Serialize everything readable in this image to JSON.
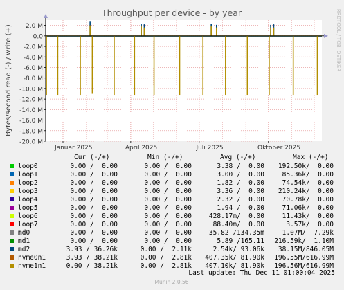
{
  "title": "Throughput per device - by year",
  "ylabel": "Bytes/second read (-) / write (+)",
  "side_label": "RRDTOOL / TOBI OETIKER",
  "footer": "Munin 2.0.56",
  "last_update": "Last update: Thu Dec 11 01:00:04 2025",
  "colors": {
    "bg": "#f0f0f0",
    "plot": "#ffffff",
    "grid": "#e8a0a0",
    "gridminor": "#f0c8c8",
    "axis": "#000000",
    "title": "#555555"
  },
  "legend_headers": {
    "cur": "Cur (-/+)",
    "min": "Min (-/+)",
    "avg": "Avg (-/+)",
    "max": "Max (-/+)"
  },
  "legend": [
    {
      "name": "loop0",
      "color": "#00cc00",
      "cur": "0.00 /  0.00",
      "min": "0.00 /  0.00",
      "avg": "3.38 /  0.00",
      "max": "192.50k/  0.00"
    },
    {
      "name": "loop1",
      "color": "#0066b3",
      "cur": "0.00 /  0.00",
      "min": "0.00 /  0.00",
      "avg": "3.00 /  0.00",
      "max": "85.36k/  0.00"
    },
    {
      "name": "loop2",
      "color": "#ff8000",
      "cur": "0.00 /  0.00",
      "min": "0.00 /  0.00",
      "avg": "1.82 /  0.00",
      "max": "74.54k/  0.00"
    },
    {
      "name": "loop3",
      "color": "#ffcc00",
      "cur": "0.00 /  0.00",
      "min": "0.00 /  0.00",
      "avg": "3.36 /  0.00",
      "max": "210.24k/  0.00"
    },
    {
      "name": "loop4",
      "color": "#330099",
      "cur": "0.00 /  0.00",
      "min": "0.00 /  0.00",
      "avg": "2.32 /  0.00",
      "max": "70.78k/  0.00"
    },
    {
      "name": "loop5",
      "color": "#990099",
      "cur": "0.00 /  0.00",
      "min": "0.00 /  0.00",
      "avg": "1.94 /  0.00",
      "max": "71.06k/  0.00"
    },
    {
      "name": "loop6",
      "color": "#ccff00",
      "cur": "0.00 /  0.00",
      "min": "0.00 /  0.00",
      "avg": "428.17m/  0.00",
      "max": "11.43k/  0.00"
    },
    {
      "name": "loop7",
      "color": "#ff0000",
      "cur": "0.00 /  0.00",
      "min": "0.00 /  0.00",
      "avg": "88.40m/  0.00",
      "max": "3.57k/  0.00"
    },
    {
      "name": "md0",
      "color": "#808080",
      "cur": "0.00 /  0.00",
      "min": "0.00 /  0.00",
      "avg": "35.82 /134.35m",
      "max": "1.07M/  7.29k"
    },
    {
      "name": "md1",
      "color": "#008f00",
      "cur": "0.00 /  0.00",
      "min": "0.00 /  0.00",
      "avg": "5.89 /165.11",
      "max": "216.59k/  1.10M"
    },
    {
      "name": "md2",
      "color": "#00487d",
      "cur": "3.93 / 36.26k",
      "min": "0.00 /  2.11k",
      "avg": "2.54k/ 93.06k",
      "max": "38.15M/846.05M"
    },
    {
      "name": "nvme0n1",
      "color": "#b35a00",
      "cur": "3.93 / 38.21k",
      "min": "0.00 /  2.81k",
      "avg": "407.35k/ 81.90k",
      "max": "196.55M/616.99M"
    },
    {
      "name": "nvme1n1",
      "color": "#b38f00",
      "cur": "0.00 / 38.21k",
      "min": "0.00 /  2.81k",
      "avg": "407.10k/ 81.90k",
      "max": "196.56M/616.99M"
    }
  ],
  "chart_data": {
    "type": "area",
    "title": "Throughput per device - by year",
    "ylabel": "Bytes/second read (-) / write (+)",
    "yunit": "M",
    "ylim": [
      -20.0,
      3.0
    ],
    "yticks": [
      2.0,
      0.0,
      -2.0,
      -4.0,
      -6.0,
      -8.0,
      -10.0,
      -12.0,
      -14.0,
      -16.0,
      -18.0,
      -20.0
    ],
    "ytick_labels": [
      "2.0 M",
      "0.0",
      "-2.0 M",
      "-4.0 M",
      "-6.0 M",
      "-8.0 M",
      "-10.0 M",
      "-12.0 M",
      "-14.0 M",
      "-16.0 M",
      "-18.0 M",
      "-20.0 M"
    ],
    "xlim": [
      "2024-12-09",
      "2025-12-11"
    ],
    "xticks": [
      {
        "date": "2025-01-15",
        "label": "Januar 2025"
      },
      {
        "date": "2025-04-15",
        "label": "April 2025"
      },
      {
        "date": "2025-07-15",
        "label": "Juli 2025"
      },
      {
        "date": "2025-10-15",
        "label": "Oktober 2025"
      }
    ],
    "grid": true,
    "series": [
      {
        "name": "nvme1n1",
        "color": "#b38f00",
        "spikes_read": [
          {
            "date": "2024-12-10",
            "value": -11.2
          },
          {
            "date": "2024-12-25",
            "value": -11.2
          },
          {
            "date": "2025-01-24",
            "value": -11.2
          },
          {
            "date": "2025-02-09",
            "value": -11.0
          },
          {
            "date": "2025-03-10",
            "value": -11.2
          },
          {
            "date": "2025-04-06",
            "value": -11.2
          },
          {
            "date": "2025-05-02",
            "value": -11.2
          },
          {
            "date": "2025-06-05",
            "value": -11.2
          },
          {
            "date": "2025-07-06",
            "value": -11.2
          },
          {
            "date": "2025-08-05",
            "value": -11.2
          },
          {
            "date": "2025-09-03",
            "value": -11.2
          },
          {
            "date": "2025-10-02",
            "value": -11.2
          },
          {
            "date": "2025-11-03",
            "value": -11.2
          },
          {
            "date": "2025-12-05",
            "value": -11.2
          }
        ],
        "spikes_write": [
          {
            "date": "2025-02-06",
            "value": 2.0
          },
          {
            "date": "2025-04-15",
            "value": 1.8
          },
          {
            "date": "2025-04-19",
            "value": 1.6
          },
          {
            "date": "2025-07-17",
            "value": 1.8
          },
          {
            "date": "2025-07-24",
            "value": 1.6
          },
          {
            "date": "2025-10-04",
            "value": 1.6
          },
          {
            "date": "2025-10-08",
            "value": 1.6
          }
        ]
      },
      {
        "name": "md2",
        "color": "#00487d",
        "spikes_write": [
          {
            "date": "2025-02-06",
            "value": 2.7
          },
          {
            "date": "2025-04-15",
            "value": 2.3
          },
          {
            "date": "2025-04-19",
            "value": 2.2
          },
          {
            "date": "2025-07-17",
            "value": 2.3
          },
          {
            "date": "2025-07-24",
            "value": 2.1
          },
          {
            "date": "2025-10-04",
            "value": 2.1
          },
          {
            "date": "2025-10-08",
            "value": 2.2
          }
        ]
      }
    ]
  }
}
